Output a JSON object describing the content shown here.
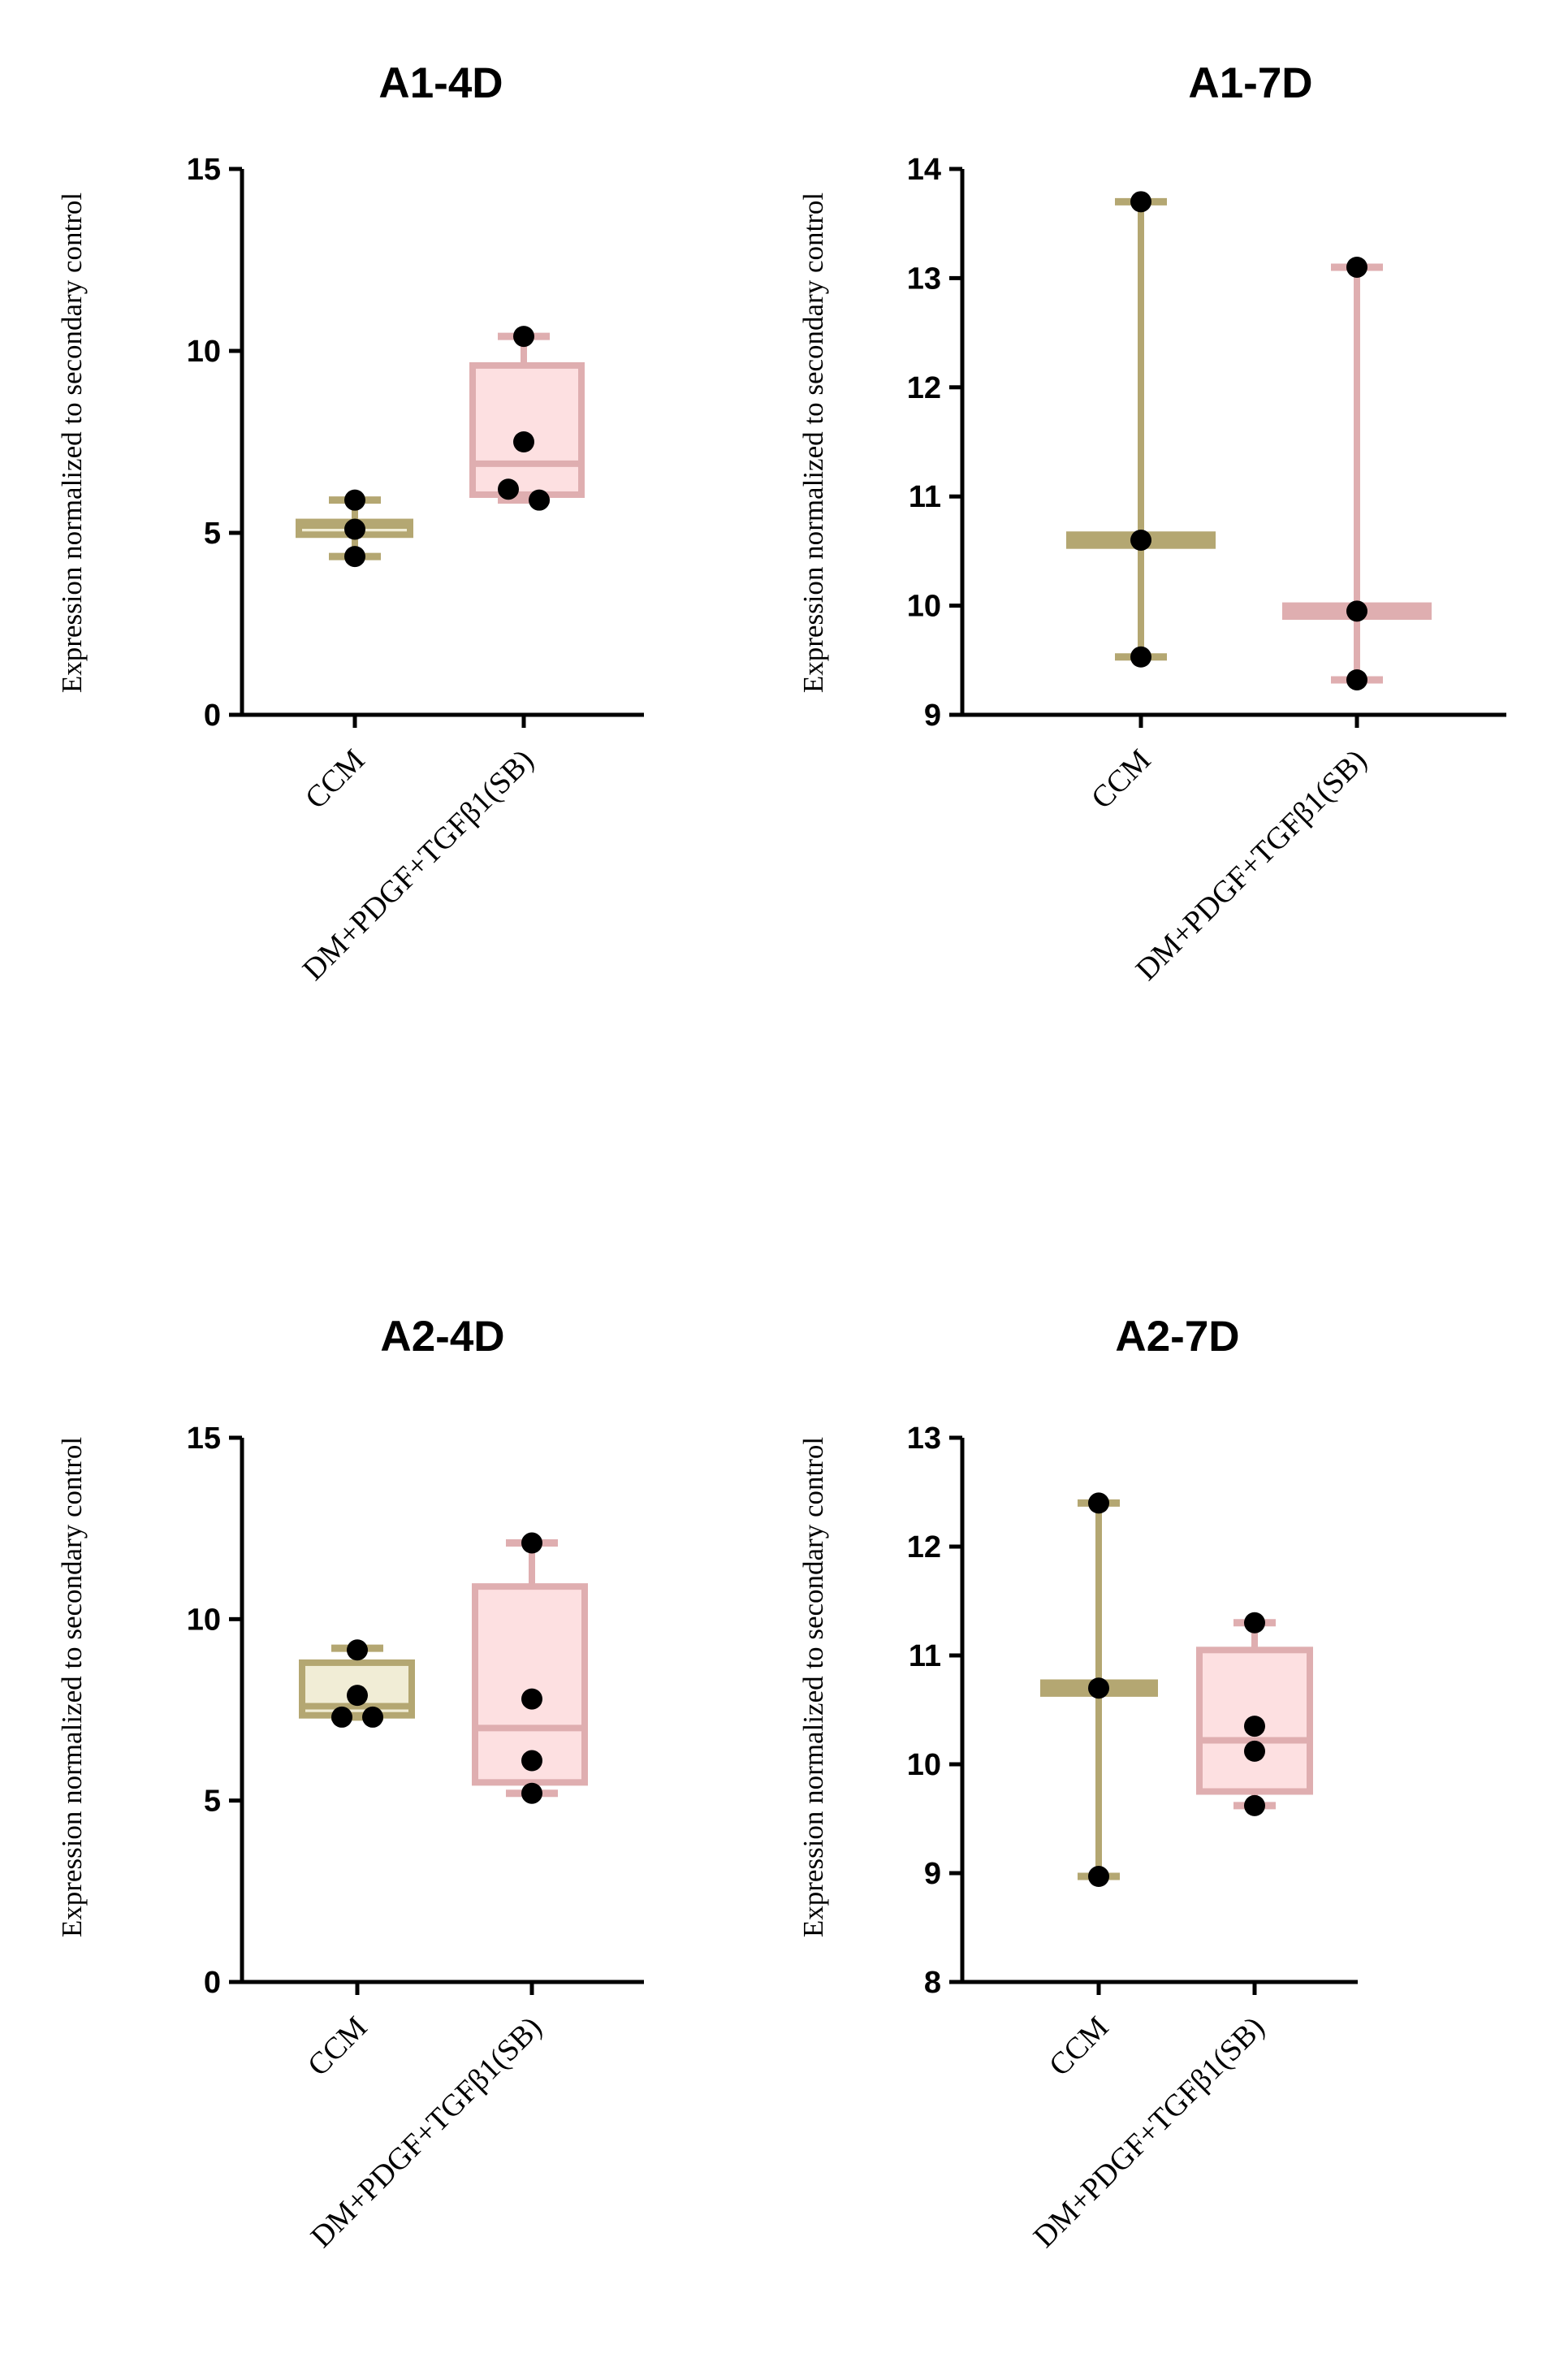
{
  "colors": {
    "ccm_stroke": "#b4a772",
    "ccm_fill": "#f1edd6",
    "dm_stroke": "#dfaeb0",
    "dm_fill": "#fde0e1",
    "point": "#000000",
    "axis": "#000000"
  },
  "chart_data": [
    {
      "type": "box",
      "title": "A1-4D",
      "ylabel": "Expression normalized to secondary control",
      "ylim": [
        0,
        15
      ],
      "yticks": [
        "0",
        "5",
        "10",
        "15"
      ],
      "categories": [
        "CCM",
        "DM+PDGF+TGFβ1(SB)"
      ],
      "series": [
        {
          "name": "CCM",
          "min": 4.35,
          "q1": 4.95,
          "median": 5.2,
          "q3": 5.3,
          "max": 5.9,
          "points": [
            5.9,
            5.1,
            4.35
          ]
        },
        {
          "name": "DM+PDGF+TGFβ1(SB)",
          "min": 5.9,
          "q1": 6.05,
          "median": 6.9,
          "q3": 9.6,
          "max": 10.4,
          "points": [
            10.4,
            7.5,
            6.2,
            5.9
          ]
        }
      ]
    },
    {
      "type": "box",
      "title": "A1-7D",
      "ylabel": "Expression normalized to secondary control",
      "ylim": [
        9,
        14
      ],
      "yticks": [
        "9",
        "10",
        "11",
        "12",
        "13",
        "14"
      ],
      "categories": [
        "CCM",
        "DM+PDGF+TGFβ1(SB)"
      ],
      "series": [
        {
          "name": "CCM",
          "min": 9.53,
          "q1": 10.55,
          "median": 10.6,
          "q3": 10.65,
          "max": 13.7,
          "points": [
            13.7,
            10.6,
            9.53
          ]
        },
        {
          "name": "DM+PDGF+TGFβ1(SB)",
          "min": 9.32,
          "q1": 9.9,
          "median": 9.95,
          "q3": 10.0,
          "max": 13.1,
          "points": [
            13.1,
            9.95,
            9.32
          ]
        }
      ]
    },
    {
      "type": "box",
      "title": "A2-4D",
      "ylabel": "Expression normalized to secondary control",
      "ylim": [
        0,
        15
      ],
      "yticks": [
        "0",
        "5",
        "10",
        "15"
      ],
      "categories": [
        "CCM",
        "DM+PDGF+TGFβ1(SB)"
      ],
      "series": [
        {
          "name": "CCM",
          "min": 7.3,
          "q1": 7.35,
          "median": 7.6,
          "q3": 8.8,
          "max": 9.2,
          "points": [
            9.15,
            7.9,
            7.3,
            7.3
          ]
        },
        {
          "name": "DM+PDGF+TGFβ1(SB)",
          "min": 5.2,
          "q1": 5.5,
          "median": 7.0,
          "q3": 10.9,
          "max": 12.1,
          "points": [
            12.1,
            7.8,
            6.1,
            5.2
          ]
        }
      ]
    },
    {
      "type": "box",
      "title": "A2-7D",
      "ylabel": "Expression normalized to secondary control",
      "ylim": [
        8,
        13
      ],
      "yticks": [
        "8",
        "9",
        "10",
        "11",
        "12",
        "13"
      ],
      "categories": [
        "CCM",
        "DM+PDGF+TGFβ1(SB)"
      ],
      "series": [
        {
          "name": "CCM",
          "min": 8.97,
          "q1": 10.65,
          "median": 10.7,
          "q3": 10.75,
          "max": 12.4,
          "points": [
            12.4,
            10.7,
            8.97
          ]
        },
        {
          "name": "DM+PDGF+TGFβ1(SB)",
          "min": 9.62,
          "q1": 9.75,
          "median": 10.22,
          "q3": 11.05,
          "max": 11.3,
          "points": [
            11.3,
            10.35,
            10.12,
            9.62
          ]
        }
      ]
    }
  ]
}
